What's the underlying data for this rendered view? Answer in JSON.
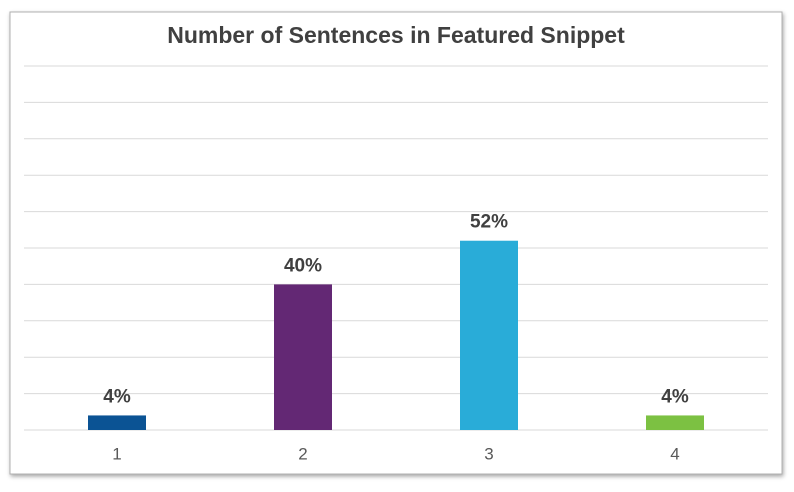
{
  "chart_data": {
    "type": "bar",
    "title": "Number of Sentences in Featured Snippet",
    "categories": [
      "1",
      "2",
      "3",
      "4"
    ],
    "values": [
      4,
      40,
      52,
      4
    ],
    "value_labels": [
      "4%",
      "40%",
      "52%",
      "4%"
    ],
    "colors": [
      "#0b5394",
      "#632874",
      "#29acd8",
      "#7cc142"
    ],
    "ylim": [
      0,
      100
    ],
    "yticks": [
      0,
      10,
      20,
      30,
      40,
      50,
      60,
      70,
      80,
      90,
      100
    ],
    "grid": true
  }
}
